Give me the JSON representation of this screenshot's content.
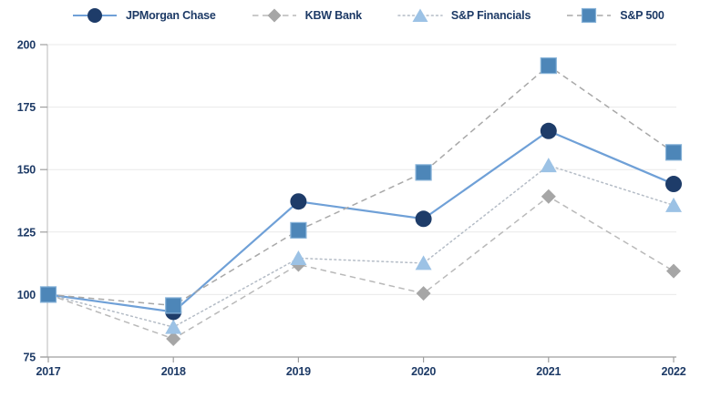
{
  "chart_data": {
    "type": "line",
    "x": [
      2017,
      2018,
      2019,
      2020,
      2021,
      2022
    ],
    "xticks": [
      "2017",
      "2018",
      "2019",
      "2020",
      "2021",
      "2022"
    ],
    "yticks": [
      75,
      100,
      125,
      150,
      175,
      200
    ],
    "ylim": [
      75,
      200
    ],
    "grid": "horizontal",
    "legend_position": "top",
    "series": [
      {
        "name": "JPMorgan Chase",
        "values": [
          100.0,
          93.06,
          137.23,
          130.3,
          165.46,
          144.22
        ],
        "marker": "circle",
        "line_style": "solid",
        "marker_color": "#1e3c69",
        "line_color": "#6fa0d7"
      },
      {
        "name": "KBW Bank",
        "values": [
          100.0,
          82.29,
          112.01,
          100.46,
          139.23,
          109.39
        ],
        "marker": "diamond",
        "line_style": "dashed",
        "marker_color": "#a6a6a6",
        "line_color": "#b9b9b9"
      },
      {
        "name": "S&P Financials",
        "values": [
          100.0,
          86.97,
          114.55,
          112.56,
          151.66,
          135.73
        ],
        "marker": "triangle",
        "line_style": "dotted",
        "marker_color": "#9cc2e5",
        "line_color": "#b4bcc6"
      },
      {
        "name": "S&P 500",
        "values": [
          100.0,
          95.61,
          125.7,
          148.85,
          191.58,
          156.88
        ],
        "marker": "square",
        "line_style": "dashed",
        "marker_color": "#4d86b8",
        "line_color": "#a8a8a8"
      }
    ],
    "colors": {
      "tick_text": "#1d3a66",
      "gridline": "#e9e9e9",
      "y_axis_line": "#c9c9c9",
      "x_axis_line": "#9f9f9f",
      "square_border": "#86b2d8"
    }
  }
}
